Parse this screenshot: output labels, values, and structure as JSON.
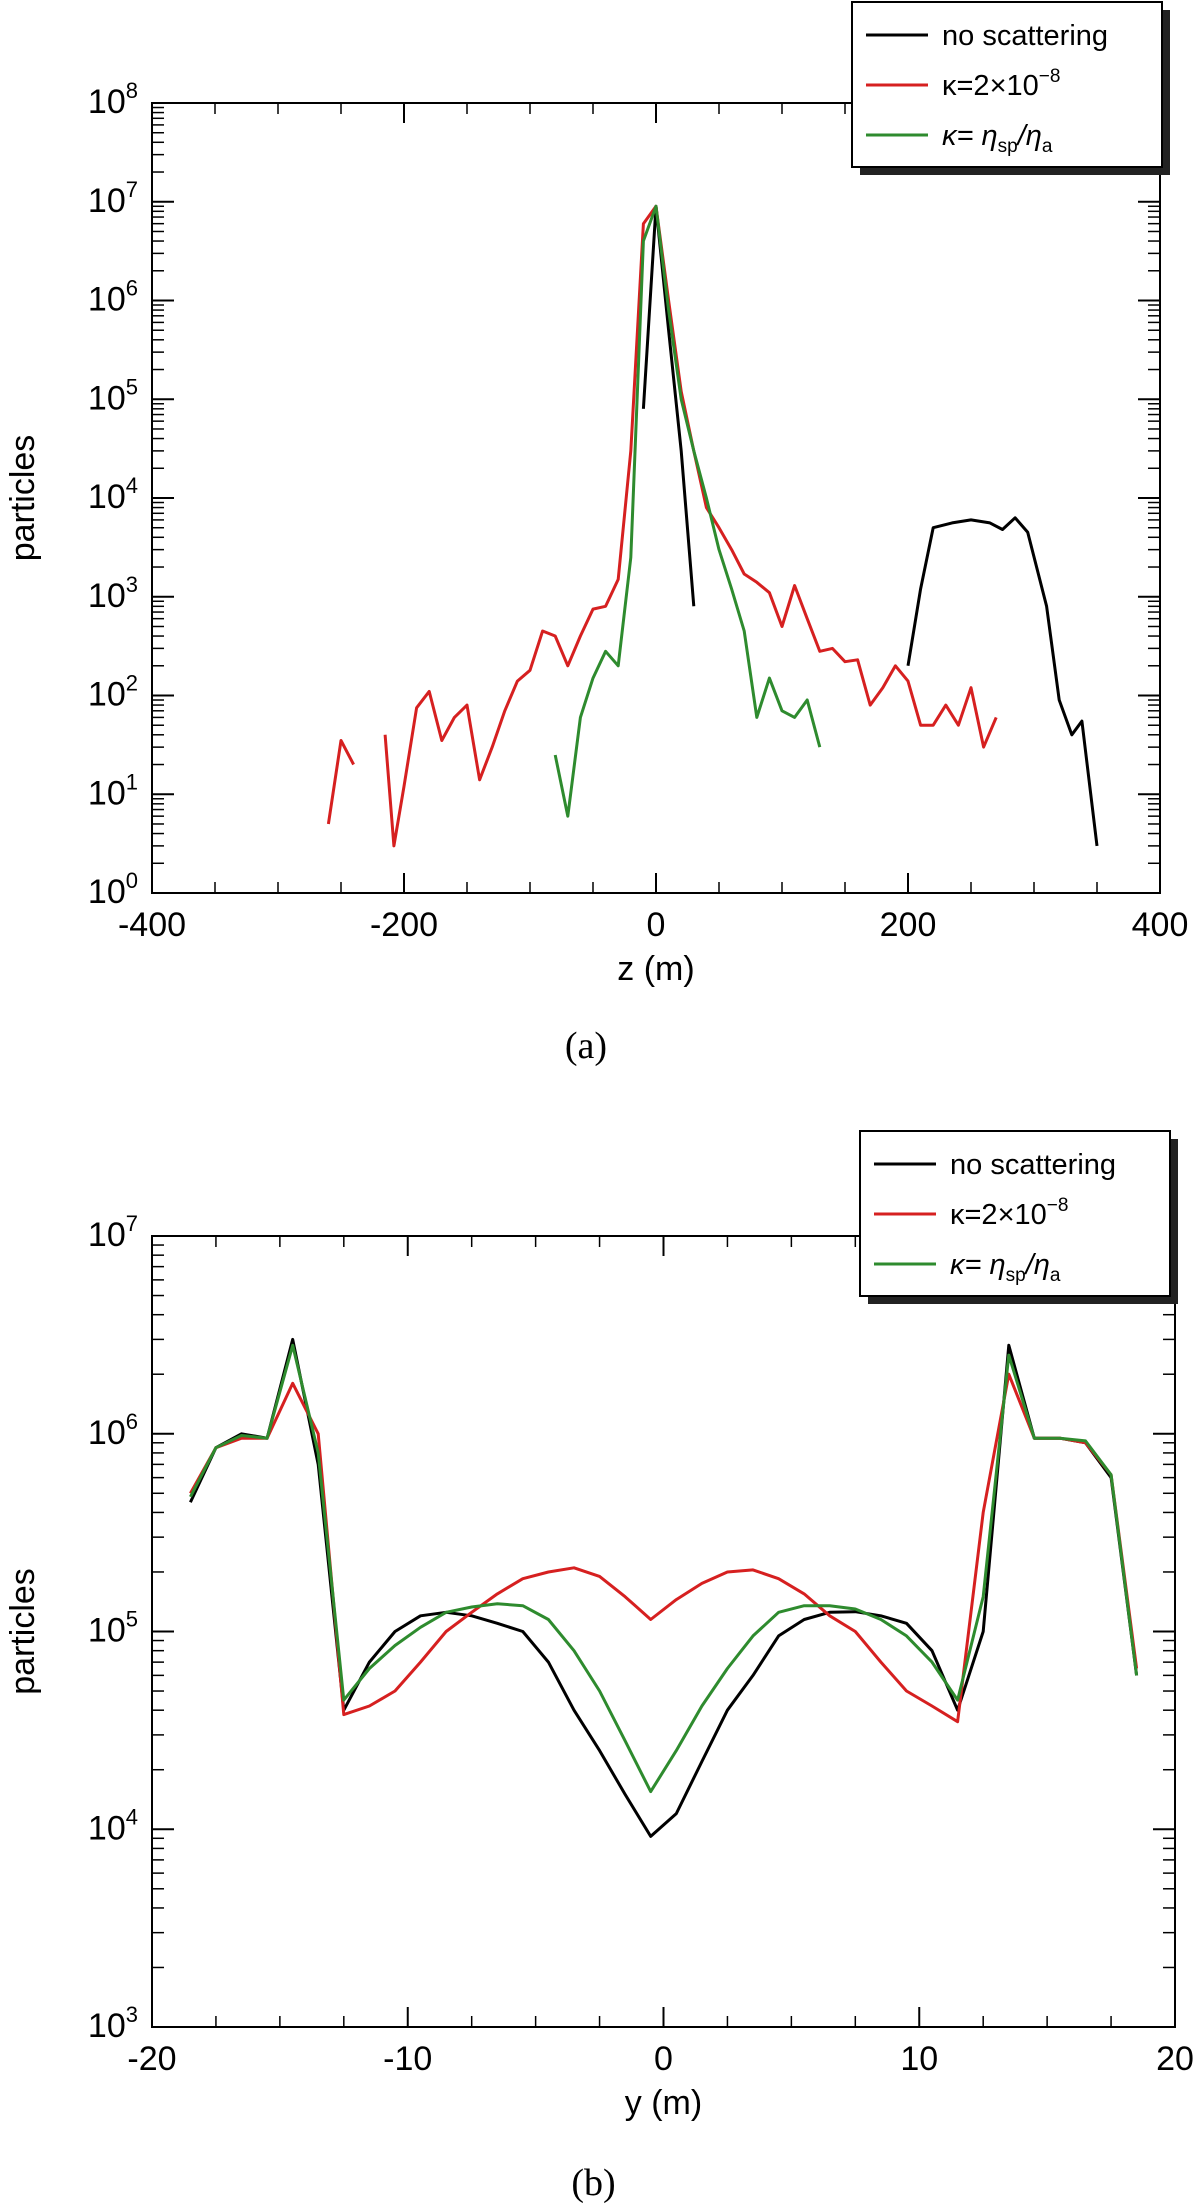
{
  "chart_data": [
    {
      "type": "line",
      "panel_label": "(a)",
      "xlabel": "z (m)",
      "ylabel": "particles",
      "y_scale": "log",
      "xlim": [
        -400,
        400
      ],
      "ylim": [
        1,
        100000000
      ],
      "x_ticks": [
        "-400",
        "-200",
        "0",
        "200",
        "400"
      ],
      "y_tick_mantissa": "10",
      "y_tick_exponents": [
        "0",
        "1",
        "2",
        "3",
        "4",
        "5",
        "6",
        "7",
        "8"
      ],
      "legend_position": "top-right",
      "series": [
        {
          "name": "no scattering",
          "color": "#000000",
          "segments": [
            [
              [
                -10,
                80000
              ],
              [
                0,
                9000000
              ],
              [
                10,
                500000
              ],
              [
                20,
                30000
              ],
              [
                30,
                800
              ]
            ],
            [
              [
                200,
                200
              ],
              [
                210,
                1200
              ],
              [
                220,
                5000
              ],
              [
                235,
                5600
              ],
              [
                250,
                6000
              ],
              [
                265,
                5600
              ],
              [
                275,
                4800
              ],
              [
                285,
                6300
              ],
              [
                295,
                4500
              ],
              [
                310,
                800
              ],
              [
                320,
                90
              ],
              [
                330,
                40
              ],
              [
                338,
                55
              ],
              [
                350,
                3
              ]
            ]
          ]
        },
        {
          "name": "κ=2×10⁻⁸",
          "color": "#d62020",
          "segments": [
            [
              [
                -260,
                5
              ],
              [
                -250,
                35
              ],
              [
                -240,
                20
              ]
            ],
            [
              [
                -215,
                40
              ],
              [
                -208,
                3
              ],
              [
                -200,
                12
              ],
              [
                -190,
                75
              ],
              [
                -180,
                110
              ],
              [
                -170,
                35
              ],
              [
                -160,
                60
              ],
              [
                -150,
                80
              ],
              [
                -140,
                14
              ],
              [
                -130,
                30
              ],
              [
                -120,
                70
              ],
              [
                -110,
                140
              ],
              [
                -100,
                180
              ],
              [
                -90,
                450
              ],
              [
                -80,
                400
              ],
              [
                -70,
                200
              ],
              [
                -60,
                400
              ],
              [
                -50,
                750
              ],
              [
                -40,
                800
              ],
              [
                -30,
                1500
              ],
              [
                -20,
                30000
              ],
              [
                -10,
                6000000
              ],
              [
                0,
                9000000
              ],
              [
                10,
                1000000
              ],
              [
                20,
                120000
              ],
              [
                30,
                30000
              ],
              [
                40,
                8000
              ],
              [
                50,
                5000
              ],
              [
                60,
                3000
              ],
              [
                70,
                1700
              ],
              [
                80,
                1400
              ],
              [
                90,
                1100
              ],
              [
                100,
                500
              ],
              [
                110,
                1300
              ],
              [
                120,
                600
              ],
              [
                130,
                280
              ],
              [
                140,
                300
              ],
              [
                150,
                220
              ],
              [
                160,
                230
              ],
              [
                170,
                80
              ],
              [
                180,
                120
              ],
              [
                190,
                200
              ],
              [
                200,
                140
              ],
              [
                210,
                50
              ],
              [
                220,
                50
              ],
              [
                230,
                80
              ],
              [
                240,
                50
              ],
              [
                250,
                120
              ],
              [
                260,
                30
              ],
              [
                270,
                60
              ]
            ]
          ]
        },
        {
          "name": "κ= η_sp/η_a",
          "color": "#2e8b2e",
          "segments": [
            [
              [
                -80,
                25
              ],
              [
                -70,
                6
              ],
              [
                -60,
                60
              ],
              [
                -50,
                150
              ],
              [
                -40,
                280
              ],
              [
                -30,
                200
              ],
              [
                -20,
                2500
              ],
              [
                -10,
                4000000
              ],
              [
                0,
                9000000
              ],
              [
                10,
                800000
              ],
              [
                20,
                100000
              ],
              [
                30,
                30000
              ],
              [
                40,
                10000
              ],
              [
                50,
                3000
              ],
              [
                60,
                1200
              ],
              [
                70,
                450
              ],
              [
                80,
                60
              ],
              [
                90,
                150
              ],
              [
                100,
                70
              ],
              [
                110,
                60
              ],
              [
                120,
                90
              ],
              [
                130,
                30
              ]
            ]
          ]
        }
      ]
    },
    {
      "type": "line",
      "panel_label": "(b)",
      "xlabel": "y (m)",
      "ylabel": "particles",
      "y_scale": "log",
      "xlim": [
        -20,
        20
      ],
      "ylim": [
        1000,
        10000000
      ],
      "x_ticks": [
        "-20",
        "-10",
        "0",
        "10",
        "20"
      ],
      "y_tick_mantissa": "10",
      "y_tick_exponents": [
        "3",
        "4",
        "5",
        "6",
        "7"
      ],
      "legend_position": "top-right",
      "series": [
        {
          "name": "no scattering",
          "color": "#000000",
          "segments": [
            [
              [
                -18.5,
                450000
              ],
              [
                -17.5,
                850000
              ],
              [
                -16.5,
                1000000
              ],
              [
                -15.5,
                950000
              ],
              [
                -14.5,
                3000000
              ],
              [
                -13.5,
                700000
              ],
              [
                -12.5,
                40000
              ],
              [
                -11.5,
                70000
              ],
              [
                -10.5,
                100000
              ],
              [
                -9.5,
                120000
              ],
              [
                -8.5,
                125000
              ],
              [
                -7.5,
                120000
              ],
              [
                -6.5,
                110000
              ],
              [
                -5.5,
                100000
              ],
              [
                -4.5,
                70000
              ],
              [
                -3.5,
                40000
              ],
              [
                -2.5,
                25000
              ],
              [
                -1.5,
                15000
              ],
              [
                -0.5,
                9200
              ],
              [
                0.5,
                12000
              ],
              [
                1.5,
                22000
              ],
              [
                2.5,
                40000
              ],
              [
                3.5,
                60000
              ],
              [
                4.5,
                95000
              ],
              [
                5.5,
                115000
              ],
              [
                6.5,
                125000
              ],
              [
                7.5,
                126000
              ],
              [
                8.5,
                120000
              ],
              [
                9.5,
                110000
              ],
              [
                10.5,
                80000
              ],
              [
                11.5,
                40000
              ],
              [
                12.5,
                100000
              ],
              [
                13.5,
                2800000
              ],
              [
                14.5,
                950000
              ],
              [
                15.5,
                950000
              ],
              [
                16.5,
                900000
              ],
              [
                17.5,
                600000
              ],
              [
                18.5,
                60000
              ]
            ]
          ]
        },
        {
          "name": "κ=2×10⁻⁸",
          "color": "#d62020",
          "segments": [
            [
              [
                -18.5,
                500000
              ],
              [
                -17.5,
                850000
              ],
              [
                -16.5,
                950000
              ],
              [
                -15.5,
                950000
              ],
              [
                -14.5,
                1800000
              ],
              [
                -13.5,
                1000000
              ],
              [
                -12.5,
                38000
              ],
              [
                -11.5,
                42000
              ],
              [
                -10.5,
                50000
              ],
              [
                -9.5,
                70000
              ],
              [
                -8.5,
                100000
              ],
              [
                -7.5,
                125000
              ],
              [
                -6.5,
                155000
              ],
              [
                -5.5,
                185000
              ],
              [
                -4.5,
                200000
              ],
              [
                -3.5,
                210000
              ],
              [
                -2.5,
                190000
              ],
              [
                -1.5,
                150000
              ],
              [
                -0.5,
                115000
              ],
              [
                0.5,
                145000
              ],
              [
                1.5,
                175000
              ],
              [
                2.5,
                200000
              ],
              [
                3.5,
                205000
              ],
              [
                4.5,
                185000
              ],
              [
                5.5,
                155000
              ],
              [
                6.5,
                120000
              ],
              [
                7.5,
                100000
              ],
              [
                8.5,
                70000
              ],
              [
                9.5,
                50000
              ],
              [
                10.5,
                42000
              ],
              [
                11.5,
                35000
              ],
              [
                12.5,
                400000
              ],
              [
                13.5,
                2000000
              ],
              [
                14.5,
                950000
              ],
              [
                15.5,
                950000
              ],
              [
                16.5,
                900000
              ],
              [
                17.5,
                620000
              ],
              [
                18.5,
                65000
              ]
            ]
          ]
        },
        {
          "name": "κ= η_sp/η_a",
          "color": "#2e8b2e",
          "segments": [
            [
              [
                -18.5,
                480000
              ],
              [
                -17.5,
                850000
              ],
              [
                -16.5,
                980000
              ],
              [
                -15.5,
                950000
              ],
              [
                -14.5,
                2800000
              ],
              [
                -13.5,
                800000
              ],
              [
                -12.5,
                45000
              ],
              [
                -11.5,
                65000
              ],
              [
                -10.5,
                85000
              ],
              [
                -9.5,
                105000
              ],
              [
                -8.5,
                125000
              ],
              [
                -7.5,
                133000
              ],
              [
                -6.5,
                138000
              ],
              [
                -5.5,
                135000
              ],
              [
                -4.5,
                115000
              ],
              [
                -3.5,
                80000
              ],
              [
                -2.5,
                50000
              ],
              [
                -1.5,
                28000
              ],
              [
                -0.5,
                15500
              ],
              [
                0.5,
                25000
              ],
              [
                1.5,
                42000
              ],
              [
                2.5,
                65000
              ],
              [
                3.5,
                95000
              ],
              [
                4.5,
                125000
              ],
              [
                5.5,
                135000
              ],
              [
                6.5,
                135000
              ],
              [
                7.5,
                130000
              ],
              [
                8.5,
                115000
              ],
              [
                9.5,
                95000
              ],
              [
                10.5,
                70000
              ],
              [
                11.5,
                45000
              ],
              [
                12.5,
                150000
              ],
              [
                13.5,
                2500000
              ],
              [
                14.5,
                950000
              ],
              [
                15.5,
                950000
              ],
              [
                16.5,
                920000
              ],
              [
                17.5,
                620000
              ],
              [
                18.5,
                60000
              ]
            ]
          ]
        }
      ]
    }
  ]
}
